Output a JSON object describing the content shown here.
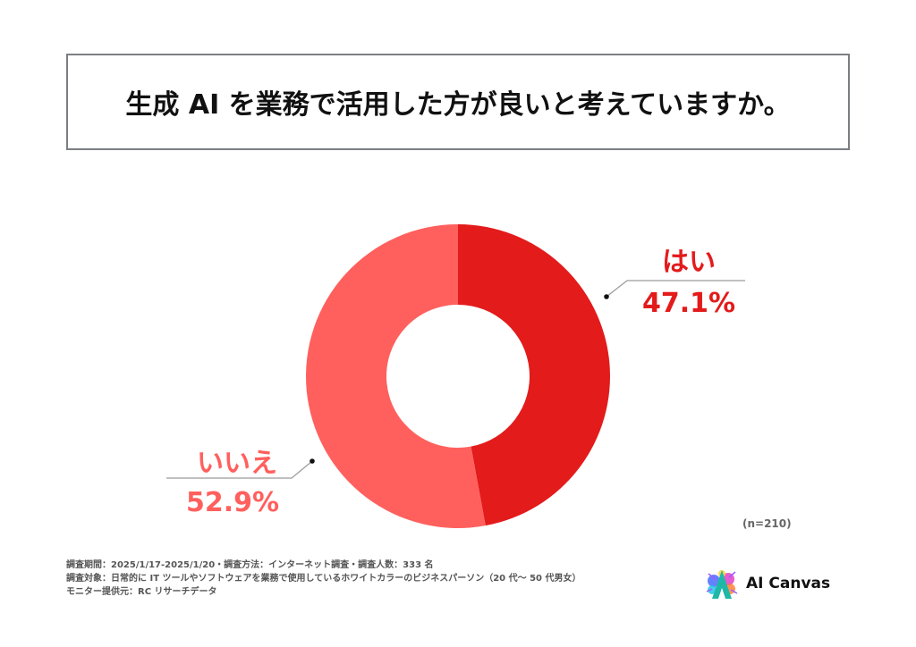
{
  "title": "生成 AI を業務で活用した方が良いと考えていますか。",
  "chart_data": {
    "type": "pie",
    "donut": true,
    "title": "生成 AI を業務で活用した方が良いと考えていますか。",
    "categories": [
      "はい",
      "いいえ"
    ],
    "values": [
      47.1,
      52.9
    ],
    "value_labels": [
      "47.1%",
      "52.9%"
    ],
    "colors": [
      "#e31b1b",
      "#ff605d"
    ],
    "start_angle": "12 o'clock",
    "direction": "clockwise",
    "n_label": "(n=210)"
  },
  "footnotes": [
    "調査期間：2025/1/17-2025/1/20・調査方法：インターネット調査・調査人数：333 名",
    "調査対象：日常的に IT ツールやソフトウェアを業務で使用しているホワイトカラーのビジネスパーソン（20 代～ 50 代男女）",
    "モニター提供元：RC リサーチデータ"
  ],
  "logo": {
    "text": "AI Canvas",
    "icon": "paint-splash-a-icon"
  }
}
